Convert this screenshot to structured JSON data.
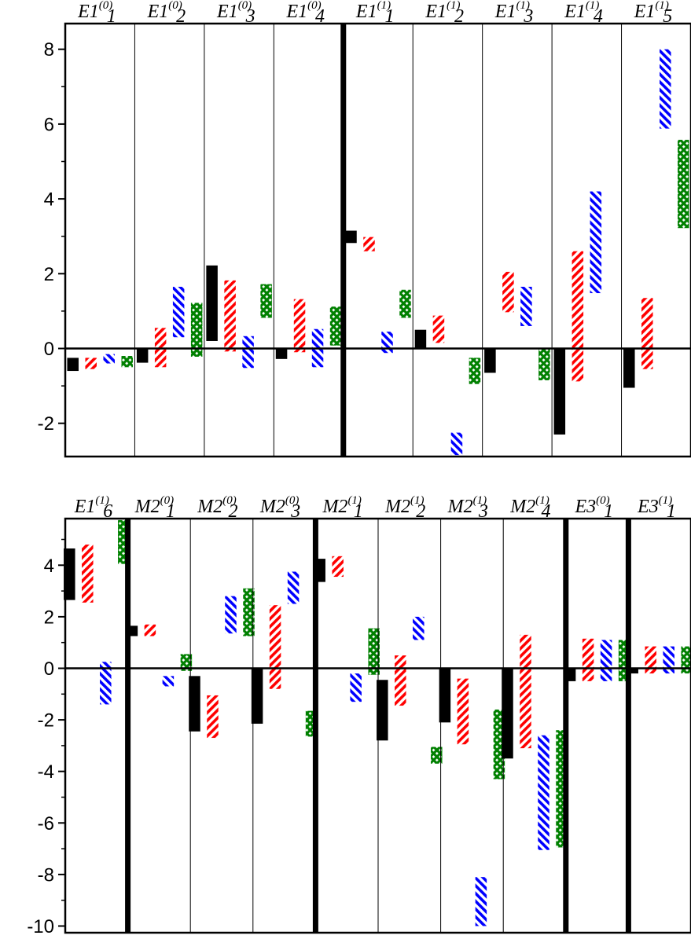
{
  "chart_data": [
    {
      "type": "floating-bar",
      "title": "",
      "xlabel": "",
      "ylabel": "",
      "ylim": [
        -2.9,
        8.4
      ],
      "yticks": [
        -2,
        0,
        2,
        4,
        6,
        8
      ],
      "grid": false,
      "series": [
        {
          "color": "#000000",
          "pattern": "solid"
        },
        {
          "color": "#ff0000",
          "pattern": "hatch-forward"
        },
        {
          "color": "#0000ff",
          "pattern": "hatch-back"
        },
        {
          "color": "#008000",
          "pattern": "crosshatch"
        }
      ],
      "columns": [
        {
          "base": "E1",
          "sup": "(0)",
          "sub": "1",
          "thick_left": false,
          "ranges": [
            [
              -0.6,
              -0.25
            ],
            [
              -0.55,
              -0.25
            ],
            [
              -0.4,
              -0.15
            ],
            [
              -0.5,
              -0.2
            ]
          ]
        },
        {
          "base": "E1",
          "sup": "(0)",
          "sub": "2",
          "thick_left": false,
          "ranges": [
            [
              -0.38,
              0.0
            ],
            [
              -0.5,
              0.55
            ],
            [
              0.3,
              1.65
            ],
            [
              -0.22,
              1.22
            ]
          ]
        },
        {
          "base": "E1",
          "sup": "(0)",
          "sub": "3",
          "thick_left": false,
          "ranges": [
            [
              0.2,
              2.22
            ],
            [
              -0.08,
              1.82
            ],
            [
              -0.52,
              0.33
            ],
            [
              0.82,
              1.72
            ]
          ]
        },
        {
          "base": "E1",
          "sup": "(0)",
          "sub": "4",
          "thick_left": false,
          "ranges": [
            [
              -0.28,
              0.0
            ],
            [
              -0.1,
              1.32
            ],
            [
              -0.5,
              0.52
            ],
            [
              0.08,
              1.12
            ]
          ]
        },
        {
          "base": "E1",
          "sup": "(1)",
          "sub": "1",
          "thick_left": true,
          "ranges": [
            [
              2.82,
              3.15
            ],
            [
              2.6,
              2.98
            ],
            [
              -0.12,
              0.45
            ],
            [
              0.82,
              1.57
            ]
          ]
        },
        {
          "base": "E1",
          "sup": "(1)",
          "sub": "2",
          "thick_left": false,
          "ranges": [
            [
              0.0,
              0.5
            ],
            [
              0.15,
              0.88
            ],
            [
              -2.85,
              -2.25
            ],
            [
              -0.95,
              -0.25
            ]
          ]
        },
        {
          "base": "E1",
          "sup": "(1)",
          "sub": "3",
          "thick_left": false,
          "ranges": [
            [
              -0.65,
              0.0
            ],
            [
              0.97,
              2.05
            ],
            [
              0.6,
              1.65
            ],
            [
              -0.85,
              0.0
            ]
          ]
        },
        {
          "base": "E1",
          "sup": "(1)",
          "sub": "4",
          "thick_left": false,
          "ranges": [
            [
              -2.3,
              0.0
            ],
            [
              -0.88,
              2.6
            ],
            [
              1.48,
              4.2
            ],
            null
          ]
        },
        {
          "base": "E1",
          "sup": "(1)",
          "sub": "5",
          "thick_left": false,
          "ranges": [
            [
              -1.05,
              0.0
            ],
            [
              -0.55,
              1.35
            ],
            [
              5.88,
              8.0
            ],
            [
              3.22,
              5.58
            ]
          ]
        }
      ]
    },
    {
      "type": "floating-bar",
      "title": "",
      "xlabel": "",
      "ylabel": "",
      "ylim": [
        -10.2,
        5.8
      ],
      "yticks": [
        -10,
        -8,
        -6,
        -4,
        -2,
        0,
        2,
        4
      ],
      "grid": false,
      "series": [
        {
          "color": "#000000",
          "pattern": "solid"
        },
        {
          "color": "#ff0000",
          "pattern": "hatch-forward"
        },
        {
          "color": "#0000ff",
          "pattern": "hatch-back"
        },
        {
          "color": "#008000",
          "pattern": "crosshatch"
        }
      ],
      "columns": [
        {
          "base": "E1",
          "sup": "(1)",
          "sub": "6",
          "thick_left": false,
          "ranges": [
            [
              2.65,
              4.65
            ],
            [
              2.55,
              4.8
            ],
            [
              -1.4,
              0.25
            ],
            [
              4.05,
              5.75
            ]
          ]
        },
        {
          "base": "M2",
          "sup": "(0)",
          "sub": "1",
          "thick_left": true,
          "ranges": [
            [
              1.25,
              1.65
            ],
            [
              1.25,
              1.7
            ],
            [
              -0.7,
              -0.3
            ],
            [
              -0.1,
              0.55
            ]
          ]
        },
        {
          "base": "M2",
          "sup": "(0)",
          "sub": "2",
          "thick_left": false,
          "ranges": [
            [
              -2.45,
              -0.3
            ],
            [
              -2.7,
              -1.05
            ],
            [
              1.35,
              2.8
            ],
            [
              1.25,
              3.1
            ]
          ]
        },
        {
          "base": "M2",
          "sup": "(0)",
          "sub": "3",
          "thick_left": false,
          "ranges": [
            [
              -2.15,
              0.0
            ],
            [
              -0.8,
              2.45
            ],
            [
              2.5,
              3.75
            ],
            [
              -2.65,
              -1.65
            ]
          ]
        },
        {
          "base": "M2",
          "sup": "(1)",
          "sub": "1",
          "thick_left": true,
          "ranges": [
            [
              3.35,
              4.25
            ],
            [
              3.55,
              4.35
            ],
            [
              -1.3,
              -0.2
            ],
            [
              -0.25,
              1.55
            ]
          ]
        },
        {
          "base": "M2",
          "sup": "(1)",
          "sub": "2",
          "thick_left": false,
          "ranges": [
            [
              -2.8,
              -0.45
            ],
            [
              -1.45,
              0.5
            ],
            [
              1.1,
              2.0
            ],
            [
              -3.7,
              -3.05
            ]
          ]
        },
        {
          "base": "M2",
          "sup": "(1)",
          "sub": "3",
          "thick_left": false,
          "ranges": [
            [
              -2.1,
              0.0
            ],
            [
              -2.95,
              -0.4
            ],
            [
              -10.0,
              -8.1
            ],
            [
              -4.3,
              -1.6
            ]
          ]
        },
        {
          "base": "M2",
          "sup": "(1)",
          "sub": "4",
          "thick_left": false,
          "ranges": [
            [
              -3.5,
              0.0
            ],
            [
              -3.1,
              1.3
            ],
            [
              -7.05,
              -2.6
            ],
            [
              -6.95,
              -2.4
            ]
          ]
        },
        {
          "base": "E3",
          "sup": "(0)",
          "sub": "1",
          "thick_left": true,
          "ranges": [
            [
              -0.5,
              0.0
            ],
            [
              -0.5,
              1.15
            ],
            [
              -0.5,
              1.1
            ],
            [
              -0.5,
              1.1
            ]
          ]
        },
        {
          "base": "E3",
          "sup": "(1)",
          "sub": "1",
          "thick_left": true,
          "ranges": [
            [
              -0.2,
              0.0
            ],
            [
              -0.2,
              0.85
            ],
            [
              -0.2,
              0.85
            ],
            [
              -0.2,
              0.85
            ]
          ]
        }
      ]
    }
  ]
}
